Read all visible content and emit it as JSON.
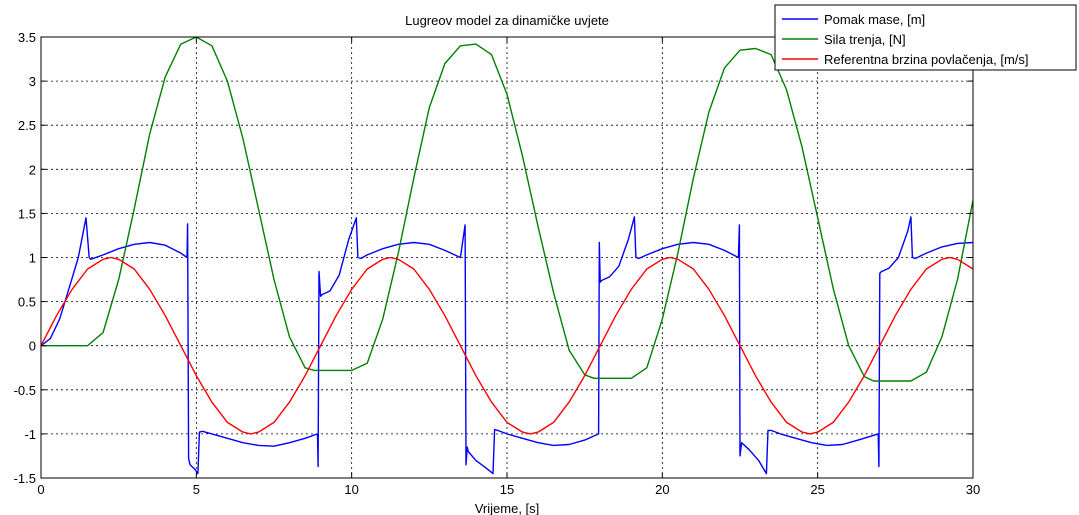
{
  "chart_data": {
    "type": "line",
    "title": "Lugreov model za dinamičke uvjete",
    "xlabel": "Vrijeme, [s]",
    "ylabel": "",
    "xlim": [
      0,
      30
    ],
    "ylim": [
      -1.5,
      3.5
    ],
    "x_ticks": [
      "0",
      "5",
      "10",
      "15",
      "20",
      "25",
      "30"
    ],
    "y_ticks": [
      "-1.5",
      "-1",
      "-0.5",
      "0",
      "0.5",
      "1",
      "1.5",
      "2",
      "2.5",
      "3",
      "3.5"
    ],
    "grid": true,
    "legend_position": "top-right",
    "series": [
      {
        "name": "Pomak mase, [m]",
        "color": "#0000ff",
        "x": [
          0,
          0.3,
          0.6,
          0.9,
          1.2,
          1.45,
          1.55,
          1.6,
          2.0,
          2.5,
          3.0,
          3.5,
          4.0,
          4.5,
          4.7,
          4.72,
          4.75,
          4.8,
          4.95,
          5.05,
          5.1,
          5.2,
          5.5,
          6.0,
          6.5,
          7.0,
          7.5,
          8.0,
          8.5,
          8.9,
          8.92,
          8.95,
          9.0,
          9.05,
          9.3,
          9.6,
          9.9,
          10.15,
          10.2,
          10.3,
          10.5,
          11.0,
          11.5,
          12.0,
          12.5,
          13.0,
          13.5,
          13.65,
          13.68,
          13.72,
          13.75,
          14.0,
          14.3,
          14.55,
          14.6,
          14.7,
          15.0,
          15.5,
          16.0,
          16.5,
          17.0,
          17.5,
          17.95,
          17.97,
          18.0,
          18.05,
          18.3,
          18.6,
          18.9,
          19.1,
          19.15,
          19.25,
          19.5,
          20.0,
          20.5,
          21.0,
          21.5,
          22.0,
          22.45,
          22.48,
          22.5,
          22.55,
          22.8,
          23.1,
          23.35,
          23.4,
          23.5,
          23.8,
          24.3,
          24.8,
          25.3,
          25.8,
          26.3,
          26.95,
          26.97,
          27.0,
          27.05,
          27.3,
          27.6,
          27.9,
          28.0,
          28.05,
          28.15,
          28.5,
          29.0,
          29.5,
          30.0
        ],
        "y": [
          0,
          0.08,
          0.3,
          0.65,
          1.0,
          1.45,
          1.0,
          0.98,
          1.03,
          1.1,
          1.15,
          1.17,
          1.14,
          1.05,
          1.0,
          1.38,
          -1.28,
          -1.35,
          -1.4,
          -1.45,
          -0.98,
          -0.97,
          -1.0,
          -1.05,
          -1.1,
          -1.13,
          -1.14,
          -1.1,
          -1.05,
          -1.0,
          -1.37,
          0.84,
          0.56,
          0.58,
          0.62,
          0.8,
          1.2,
          1.45,
          1.0,
          0.99,
          1.03,
          1.1,
          1.15,
          1.17,
          1.15,
          1.08,
          1.0,
          1.37,
          -1.35,
          -1.15,
          -1.2,
          -1.3,
          -1.38,
          -1.45,
          -0.95,
          -0.96,
          -1.0,
          -1.05,
          -1.1,
          -1.13,
          -1.12,
          -1.07,
          -1.0,
          1.17,
          0.72,
          0.74,
          0.78,
          0.9,
          1.2,
          1.46,
          1.0,
          0.99,
          1.03,
          1.1,
          1.15,
          1.17,
          1.15,
          1.08,
          1.0,
          1.37,
          -1.25,
          -1.1,
          -1.18,
          -1.3,
          -1.45,
          -0.96,
          -0.96,
          -1.0,
          -1.05,
          -1.1,
          -1.13,
          -1.12,
          -1.07,
          -1.0,
          -1.37,
          0.82,
          0.84,
          0.88,
          1.0,
          1.3,
          1.46,
          1.0,
          0.99,
          1.05,
          1.12,
          1.16,
          1.17
        ]
      },
      {
        "name": "Sila trenja, [N]",
        "color": "#008000",
        "x": [
          0,
          0.5,
          1.0,
          1.5,
          2.0,
          2.5,
          3.0,
          3.5,
          4.0,
          4.5,
          5.0,
          5.5,
          6.0,
          6.5,
          7.0,
          7.5,
          8.0,
          8.5,
          8.8,
          9.0,
          9.5,
          10.0,
          10.5,
          11.0,
          11.5,
          12.0,
          12.5,
          13.0,
          13.5,
          14.0,
          14.5,
          15.0,
          15.5,
          16.0,
          16.5,
          17.0,
          17.5,
          17.8,
          18.0,
          18.5,
          19.0,
          19.5,
          20.0,
          20.5,
          21.0,
          21.5,
          22.0,
          22.5,
          23.0,
          23.5,
          24.0,
          24.5,
          25.0,
          25.5,
          26.0,
          26.5,
          26.8,
          27.0,
          27.5,
          28.0,
          28.5,
          29.0,
          29.5,
          30.0
        ],
        "y": [
          0,
          0,
          0,
          0,
          0.15,
          0.75,
          1.55,
          2.4,
          3.05,
          3.42,
          3.5,
          3.4,
          3.0,
          2.35,
          1.55,
          0.75,
          0.1,
          -0.25,
          -0.28,
          -0.28,
          -0.28,
          -0.28,
          -0.2,
          0.3,
          1.05,
          1.9,
          2.7,
          3.2,
          3.4,
          3.42,
          3.3,
          2.85,
          2.15,
          1.35,
          0.6,
          -0.05,
          -0.33,
          -0.37,
          -0.37,
          -0.37,
          -0.37,
          -0.25,
          0.3,
          1.05,
          1.9,
          2.65,
          3.15,
          3.35,
          3.37,
          3.3,
          2.9,
          2.25,
          1.45,
          0.65,
          0.0,
          -0.35,
          -0.4,
          -0.4,
          -0.4,
          -0.4,
          -0.3,
          0.1,
          0.75,
          1.65
        ]
      },
      {
        "name": "Referentna brzina povlačenja, [m/s]",
        "color": "#ff0000",
        "x": [
          0,
          0.5,
          1.0,
          1.5,
          2.0,
          2.25,
          2.5,
          3.0,
          3.5,
          4.0,
          4.5,
          5.0,
          5.5,
          6.0,
          6.5,
          6.75,
          7.0,
          7.5,
          8.0,
          8.5,
          9.0,
          9.5,
          10.0,
          10.5,
          11.0,
          11.25,
          11.5,
          12.0,
          12.5,
          13.0,
          13.5,
          14.0,
          14.5,
          15.0,
          15.5,
          15.75,
          16.0,
          16.5,
          17.0,
          17.5,
          18.0,
          18.5,
          19.0,
          19.5,
          20.0,
          20.25,
          20.5,
          21.0,
          21.5,
          22.0,
          22.5,
          23.0,
          23.5,
          24.0,
          24.5,
          24.75,
          25.0,
          25.5,
          26.0,
          26.5,
          27.0,
          27.5,
          28.0,
          28.5,
          29.0,
          29.25,
          29.5,
          30.0
        ],
        "y": [
          0,
          0.34,
          0.64,
          0.87,
          0.98,
          1.0,
          0.98,
          0.87,
          0.64,
          0.34,
          0.0,
          -0.34,
          -0.64,
          -0.87,
          -0.98,
          -1.0,
          -0.98,
          -0.87,
          -0.64,
          -0.34,
          0.0,
          0.34,
          0.64,
          0.87,
          0.98,
          1.0,
          0.98,
          0.87,
          0.64,
          0.34,
          0.0,
          -0.34,
          -0.64,
          -0.87,
          -0.98,
          -1.0,
          -0.98,
          -0.87,
          -0.64,
          -0.34,
          0.0,
          0.34,
          0.64,
          0.87,
          0.98,
          1.0,
          0.98,
          0.87,
          0.64,
          0.34,
          0.0,
          -0.34,
          -0.64,
          -0.87,
          -0.98,
          -1.0,
          -0.98,
          -0.87,
          -0.64,
          -0.34,
          0.0,
          0.34,
          0.64,
          0.87,
          0.98,
          1.0,
          0.98,
          0.87
        ]
      }
    ]
  }
}
